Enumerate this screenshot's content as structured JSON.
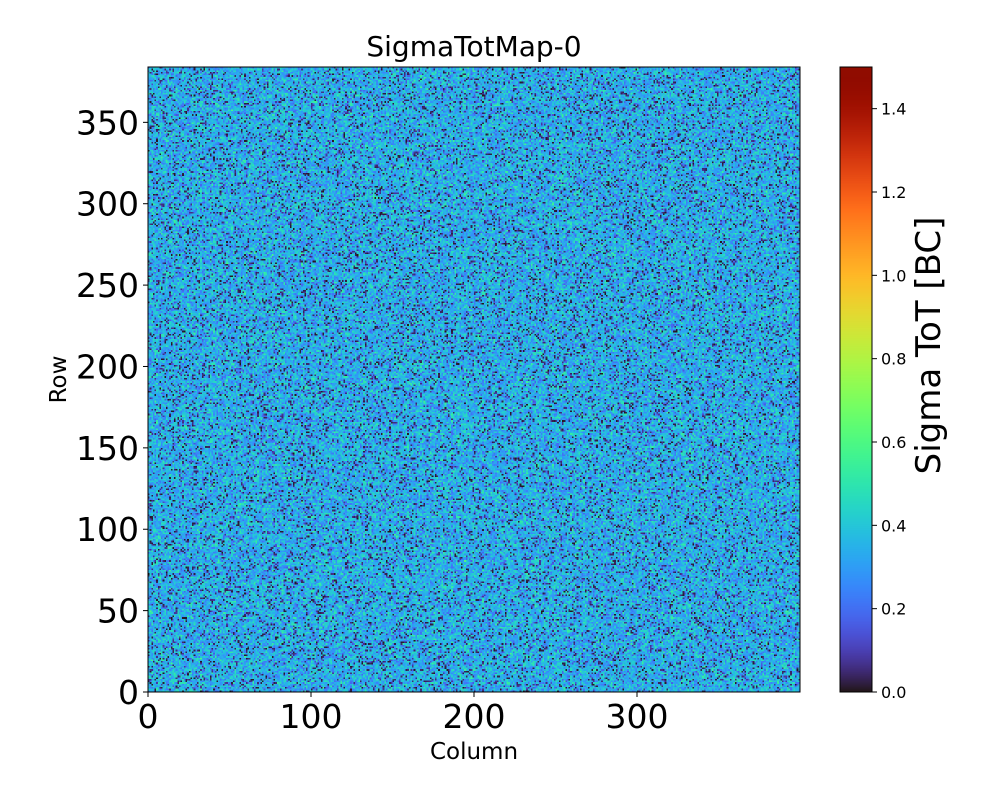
{
  "chart_data": {
    "type": "heatmap",
    "title": "SigmaTotMap-0",
    "xlabel": "Column",
    "ylabel": "Row",
    "xlim": [
      0,
      400
    ],
    "ylim": [
      0,
      384
    ],
    "x_ticks": [
      0,
      100,
      200,
      300
    ],
    "x_tick_labels": [
      "0",
      "100",
      "200",
      "300"
    ],
    "y_ticks": [
      0,
      50,
      100,
      150,
      200,
      250,
      300,
      350
    ],
    "y_tick_labels": [
      "0",
      "50",
      "100",
      "150",
      "200",
      "250",
      "300",
      "350"
    ],
    "n_columns": 400,
    "n_rows": 384,
    "value_distribution": {
      "description": "noise-like pixel map",
      "typical_min": 0.0,
      "typical_max": 0.55,
      "mean": 0.33
    },
    "colorbar": {
      "label": "Sigma ToT [BC]",
      "range": [
        0.0,
        1.5
      ],
      "ticks": [
        0.0,
        0.2,
        0.4,
        0.6,
        0.8,
        1.0,
        1.2,
        1.4
      ],
      "tick_labels": [
        "0.0",
        "0.2",
        "0.4",
        "0.6",
        "0.8",
        "1.0",
        "1.2",
        "1.4"
      ],
      "colormap": "turbo"
    },
    "grid": false
  }
}
